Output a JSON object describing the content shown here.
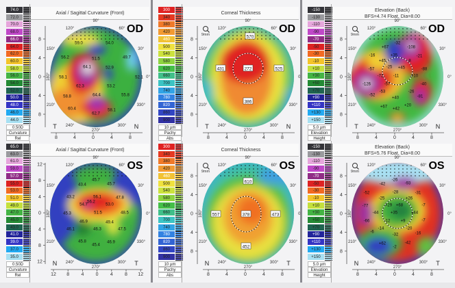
{
  "panels": [
    {
      "eye": "OD",
      "title": "Axial / Sagittal Curvature (Front)",
      "subtitle": "",
      "scale": {
        "values": [
          "74.0",
          "72.0",
          "70.0",
          "68.0",
          "66.0",
          "64.0",
          "62.0",
          "60.0",
          "58.0",
          "56.0",
          "54.0",
          "52.0",
          "50.0",
          "48.0",
          "46.0",
          "44.0"
        ],
        "colors": [
          "#333338",
          "#9a9a9e",
          "#e6a6dc",
          "#c048c8",
          "#902c86",
          "#de2222",
          "#f26a22",
          "#f4c42a",
          "#c4e03c",
          "#44b444",
          "#248a34",
          "#1f6450",
          "#22249a",
          "#3434c4",
          "#22aaf2",
          "#a8e0f2"
        ],
        "step": "0.50D",
        "type": "Curvature",
        "mode": "Rel"
      },
      "axis_ticks": [
        "8",
        "4",
        "0",
        "4",
        "8"
      ],
      "bottom_ticks": [
        "8",
        "4",
        "0",
        "4",
        "8"
      ],
      "left_marker": "T",
      "right_marker": "N",
      "zoom_label": "",
      "degree_labels": [
        "0°",
        "30°",
        "60°",
        "90°",
        "120°",
        "150°",
        "180°",
        "210°",
        "240°",
        "270°",
        "300°",
        "330°"
      ],
      "values": [
        "59.0",
        "54.0",
        "51.5",
        "56.2",
        "49.7",
        "64.1",
        "52.9",
        "58.1",
        "52.1",
        "62.3",
        "53.2",
        "58.8",
        "64.4",
        "55.8",
        "60.4",
        "58.1",
        "62.7"
      ]
    },
    {
      "eye": "OD",
      "title": "Corneal Thickness",
      "subtitle": "",
      "scale": {
        "values": [
          "300",
          "340",
          "380",
          "420",
          "460",
          "500",
          "540",
          "580",
          "620",
          "660",
          "700",
          "740",
          "780",
          "820",
          "860",
          "900"
        ],
        "colors": [
          "#e02222",
          "#e63a22",
          "#f07a2a",
          "#f29a32",
          "#f2c234",
          "#f0e23e",
          "#cce23e",
          "#8ed440",
          "#44c048",
          "#40c08a",
          "#3cc4c4",
          "#32a4e6",
          "#3282e2",
          "#3264d4",
          "#3246c4",
          "#3232a4"
        ],
        "step": "10 µm",
        "type": "Pachy",
        "mode": "Abs"
      },
      "axis_ticks": [
        "8",
        "4",
        "0",
        "4",
        "8"
      ],
      "bottom_ticks": [
        "8",
        "4",
        "0",
        "4",
        "8"
      ],
      "left_marker": "T",
      "right_marker": "N",
      "zoom_label": "9mm",
      "degree_labels": [
        "0°",
        "30°",
        "60°",
        "90°",
        "120°",
        "150°",
        "180°",
        "210°",
        "240°",
        "270°",
        "300°",
        "330°"
      ],
      "values": [
        "570",
        "431",
        "272",
        "525",
        "386"
      ]
    },
    {
      "eye": "OD",
      "title": "Elevation (Back)",
      "subtitle": "BFS=4.74 Float, Dia=8.00",
      "scale": {
        "values": [
          "-150",
          "-130",
          "-110",
          "-90",
          "-70",
          "-50",
          "-30",
          "-10",
          "+10",
          "+30",
          "+50",
          "+70",
          "+90",
          "+110",
          "+130",
          "+150"
        ],
        "colors": [
          "#333338",
          "#9a9a9e",
          "#e6a6dc",
          "#c048c8",
          "#902c86",
          "#de2222",
          "#f26a22",
          "#f4c42a",
          "#c4e03c",
          "#44b444",
          "#248a34",
          "#1f6450",
          "#22249a",
          "#3434c4",
          "#22aaf2",
          "#a8e0f2"
        ],
        "step": "5.0 µm",
        "type": "Elevation",
        "mode": "Height"
      },
      "axis_ticks": [
        "8",
        "4",
        "0",
        "4",
        "8"
      ],
      "bottom_ticks": [
        "8",
        "4",
        "0",
        "4",
        "8"
      ],
      "left_marker": "T",
      "right_marker": "N",
      "zoom_label": "9mm",
      "degree_labels": [
        "0°",
        "30°",
        "60°",
        "90°",
        "120°",
        "150°",
        "180°",
        "210°",
        "240°",
        "270°",
        "300°",
        "330°"
      ],
      "values": [
        "+67",
        "-32",
        "-108",
        "-16",
        "+35",
        "-21",
        "+45",
        "-8",
        "-25",
        "+45",
        "-88",
        "-57",
        "-72",
        "-11",
        "+10",
        "-126",
        "-57",
        "-40",
        "-26",
        "-52",
        "-53",
        "-81",
        "+40",
        "+67",
        "+42",
        "+20"
      ]
    },
    {
      "eye": "OS",
      "title": "Axial / Sagittal Curvature (Front)",
      "subtitle": "",
      "scale": {
        "values": [
          "65.0",
          "63.0",
          "61.0",
          "59.0",
          "57.0",
          "55.0",
          "53.0",
          "51.0",
          "49.0",
          "47.0",
          "45.0",
          "43.0",
          "41.0",
          "39.0",
          "37.0",
          "35.0"
        ],
        "colors": [
          "#333338",
          "#9a9a9e",
          "#e6a6dc",
          "#c048c8",
          "#902c86",
          "#de2222",
          "#f26a22",
          "#f4c42a",
          "#c4e03c",
          "#44b444",
          "#248a34",
          "#1f6450",
          "#22249a",
          "#3434c4",
          "#22aaf2",
          "#a8e0f2"
        ],
        "step": "0.50D",
        "type": "Curvature",
        "mode": "Rel"
      },
      "axis_ticks": [
        "12",
        "8",
        "4",
        "0",
        "4",
        "8",
        "12"
      ],
      "bottom_ticks": [
        "12",
        "8",
        "4",
        "0",
        "4",
        "8",
        "12"
      ],
      "left_marker": "N",
      "right_marker": "T",
      "zoom_label": "",
      "degree_labels": [
        "0°",
        "30°",
        "60°",
        "90°",
        "120°",
        "150°",
        "180°",
        "210°",
        "240°",
        "270°",
        "300°",
        "330°"
      ],
      "values": [
        "45.7",
        "45.7",
        "43.4",
        "43.2",
        "56.1",
        "47.8",
        "56.2",
        "54.7",
        "53.0",
        "45.3",
        "51.5",
        "48.5",
        "46.9",
        "49.4",
        "46.1",
        "46.3",
        "47.5",
        "45.8",
        "46.9",
        "45.4"
      ]
    },
    {
      "eye": "OS",
      "title": "Corneal Thickness",
      "subtitle": "",
      "scale": {
        "values": [
          "300",
          "340",
          "380",
          "420",
          "460",
          "500",
          "540",
          "580",
          "620",
          "660",
          "700",
          "740",
          "780",
          "820",
          "860",
          "900"
        ],
        "colors": [
          "#e02222",
          "#e63a22",
          "#f07a2a",
          "#f29a32",
          "#f2c234",
          "#f0e23e",
          "#cce23e",
          "#8ed440",
          "#44c048",
          "#40c08a",
          "#3cc4c4",
          "#32a4e6",
          "#3282e2",
          "#3264d4",
          "#3246c4",
          "#3232a4"
        ],
        "step": "10 µm",
        "type": "Pachy",
        "mode": "Abs"
      },
      "axis_ticks": [
        "8",
        "4",
        "0",
        "4",
        "8"
      ],
      "bottom_ticks": [
        "8",
        "4",
        "0",
        "4",
        "8"
      ],
      "left_marker": "N",
      "right_marker": "T",
      "zoom_label": "9mm",
      "degree_labels": [
        "0°",
        "30°",
        "60°",
        "90°",
        "120°",
        "150°",
        "180°",
        "210°",
        "240°",
        "270°",
        "300°",
        "330°"
      ],
      "values": [
        "610",
        "557",
        "378",
        "473",
        "452"
      ]
    },
    {
      "eye": "OS",
      "title": "Elevation (Back)",
      "subtitle": "BFS=5.76 Float, Dia=8.00",
      "scale": {
        "values": [
          "-150",
          "-130",
          "-110",
          "-90",
          "-70",
          "-50",
          "-30",
          "-10",
          "+10",
          "+30",
          "+50",
          "+70",
          "+90",
          "+110",
          "+130",
          "+150"
        ],
        "colors": [
          "#333338",
          "#9a9a9e",
          "#e6a6dc",
          "#c048c8",
          "#902c86",
          "#de2222",
          "#f26a22",
          "#f4c42a",
          "#c4e03c",
          "#44b444",
          "#248a34",
          "#1f6450",
          "#22249a",
          "#3434c4",
          "#22aaf2",
          "#a8e0f2"
        ],
        "step": "5.0 µm",
        "type": "Elevation",
        "mode": "Height"
      },
      "axis_ticks": [
        "8",
        "4",
        "0",
        "4",
        "8"
      ],
      "bottom_ticks": [
        "8",
        "4",
        "0",
        "4",
        "8"
      ],
      "left_marker": "N",
      "right_marker": "T",
      "zoom_label": "9mm",
      "degree_labels": [
        "0°",
        "30°",
        "60°",
        "90°",
        "120°",
        "150°",
        "180°",
        "210°",
        "240°",
        "270°",
        "300°",
        "330°"
      ],
      "values": [
        "-26",
        "-93",
        "-42",
        "-52",
        "-28",
        "-31",
        "-25",
        "+26",
        "+29",
        "+68",
        "-7",
        "-77",
        "-44",
        "+35",
        "+44",
        "-66",
        "-12",
        "+9",
        "-7",
        "-14",
        "-20",
        "-32",
        "-16",
        "-6",
        "+62",
        "-2",
        "-42"
      ]
    }
  ]
}
